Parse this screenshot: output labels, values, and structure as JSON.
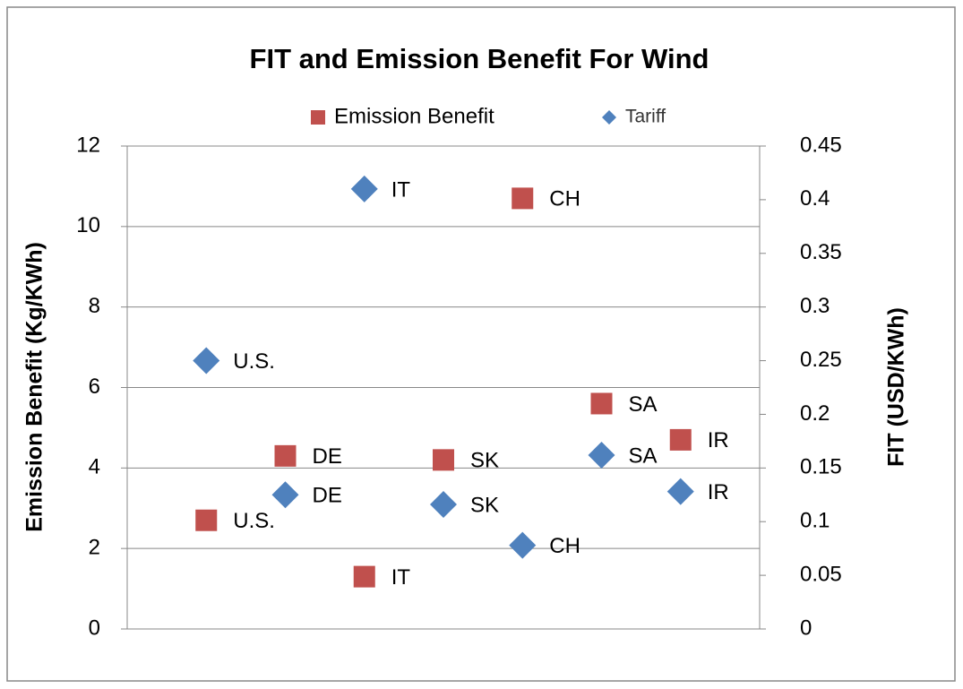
{
  "chart_data": {
    "type": "scatter",
    "title": "FIT and Emission Benefit For Wind",
    "y_label": "Emission Benefit (Kg/KWh)",
    "y2_label": "FIT (USD/KWh)",
    "categories": [
      "U.S.",
      "DE",
      "IT",
      "SK",
      "CH",
      "SA",
      "IR"
    ],
    "series": [
      {
        "name": "Emission Benefit",
        "color": "#c0504d",
        "marker": "square",
        "values": [
          2.7,
          4.3,
          1.3,
          4.2,
          10.7,
          5.6,
          4.7
        ]
      },
      {
        "name": "Tariff",
        "color": "#4f81bd",
        "marker": "diamond",
        "axis": "y2",
        "values": [
          0.25,
          0.125,
          0.41,
          0.116,
          0.078,
          0.162,
          0.128
        ]
      }
    ],
    "ylim": [
      0,
      12
    ],
    "yticks": [
      0,
      2,
      4,
      6,
      8,
      10,
      12
    ],
    "y2lim": [
      0,
      0.45
    ],
    "y2ticks": [
      0,
      0.05,
      0.1,
      0.15,
      0.2,
      0.25,
      0.3,
      0.35,
      0.4,
      0.45
    ],
    "grid": true,
    "legend": "top"
  }
}
